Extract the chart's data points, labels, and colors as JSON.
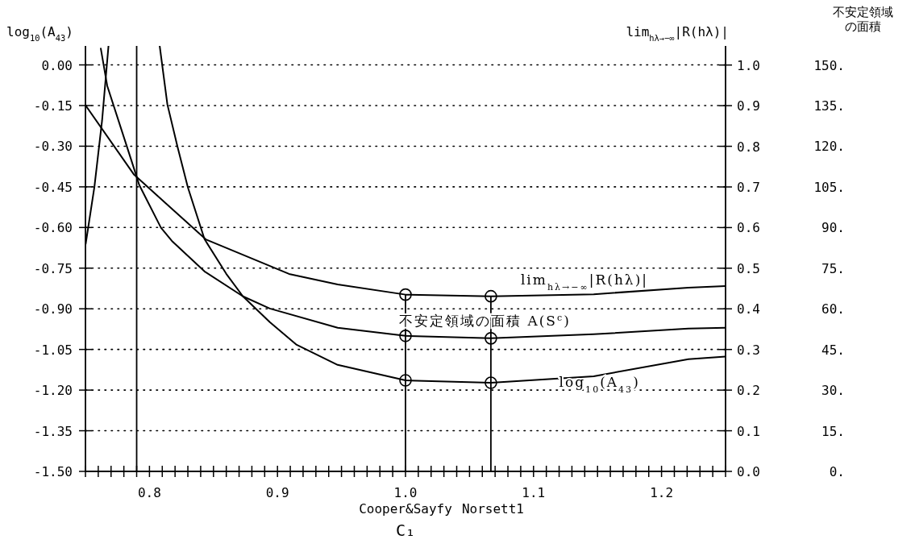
{
  "chart_data": {
    "type": "line",
    "xlabel": "C₁",
    "ylabel": "log$_{10}$(A$_{43}$)",
    "y2label": "lim$_{hλ→−∞}$|R(hλ)|",
    "y3label": "不安定領域の面積",
    "grid": "y",
    "legend": false,
    "xlim": [
      0.75,
      1.25
    ],
    "xticks": [
      {
        "value": 0.75,
        "label": null
      },
      {
        "value": 0.76,
        "label": null
      },
      {
        "value": 0.77,
        "label": null
      },
      {
        "value": 0.78,
        "label": null
      },
      {
        "value": 0.79,
        "label": null
      },
      {
        "value": 0.8,
        "label": "0.8"
      },
      {
        "value": 0.81,
        "label": null
      },
      {
        "value": 0.82,
        "label": null
      },
      {
        "value": 0.83,
        "label": null
      },
      {
        "value": 0.84,
        "label": null
      },
      {
        "value": 0.85,
        "label": null
      },
      {
        "value": 0.86,
        "label": null
      },
      {
        "value": 0.87,
        "label": null
      },
      {
        "value": 0.88,
        "label": null
      },
      {
        "value": 0.89,
        "label": null
      },
      {
        "value": 0.9,
        "label": "0.9"
      },
      {
        "value": 0.91,
        "label": null
      },
      {
        "value": 0.92,
        "label": null
      },
      {
        "value": 0.93,
        "label": null
      },
      {
        "value": 0.94,
        "label": null
      },
      {
        "value": 0.95,
        "label": null
      },
      {
        "value": 0.96,
        "label": null
      },
      {
        "value": 0.97,
        "label": null
      },
      {
        "value": 0.98,
        "label": null
      },
      {
        "value": 0.99,
        "label": null
      },
      {
        "value": 1.0,
        "label": "1.0"
      },
      {
        "value": 1.01,
        "label": null
      },
      {
        "value": 1.02,
        "label": null
      },
      {
        "value": 1.03,
        "label": null
      },
      {
        "value": 1.04,
        "label": null
      },
      {
        "value": 1.05,
        "label": null
      },
      {
        "value": 1.06,
        "label": null
      },
      {
        "value": 1.07,
        "label": null
      },
      {
        "value": 1.08,
        "label": null
      },
      {
        "value": 1.09,
        "label": null
      },
      {
        "value": 1.1,
        "label": "1.1"
      },
      {
        "value": 1.11,
        "label": null
      },
      {
        "value": 1.12,
        "label": null
      },
      {
        "value": 1.13,
        "label": null
      },
      {
        "value": 1.14,
        "label": null
      },
      {
        "value": 1.15,
        "label": null
      },
      {
        "value": 1.16,
        "label": null
      },
      {
        "value": 1.17,
        "label": null
      },
      {
        "value": 1.18,
        "label": null
      },
      {
        "value": 1.19,
        "label": null
      },
      {
        "value": 1.2,
        "label": "1.2"
      },
      {
        "value": 1.21,
        "label": null
      },
      {
        "value": 1.22,
        "label": null
      },
      {
        "value": 1.23,
        "label": null
      },
      {
        "value": 1.24,
        "label": null
      },
      {
        "value": 1.25,
        "label": null
      }
    ],
    "ylim": [
      -1.5,
      0.07
    ],
    "yticks": [
      {
        "value": 0.0,
        "label": "0.00"
      },
      {
        "value": -0.15,
        "label": "-0.15"
      },
      {
        "value": -0.3,
        "label": "-0.30"
      },
      {
        "value": -0.45,
        "label": "-0.45"
      },
      {
        "value": -0.6,
        "label": "-0.60"
      },
      {
        "value": -0.75,
        "label": "-0.75"
      },
      {
        "value": -0.9,
        "label": "-0.90"
      },
      {
        "value": -1.05,
        "label": "-1.05"
      },
      {
        "value": -1.2,
        "label": "-1.20"
      },
      {
        "value": -1.35,
        "label": "-1.35"
      },
      {
        "value": -1.5,
        "label": "-1.50"
      }
    ],
    "y2lim": [
      0,
      1.047
    ],
    "y2ticks": [
      {
        "value": 1.0,
        "label": "1.0"
      },
      {
        "value": 0.9,
        "label": "0.9"
      },
      {
        "value": 0.8,
        "label": "0.8"
      },
      {
        "value": 0.7,
        "label": "0.7"
      },
      {
        "value": 0.6,
        "label": "0.6"
      },
      {
        "value": 0.5,
        "label": "0.5"
      },
      {
        "value": 0.4,
        "label": "0.4"
      },
      {
        "value": 0.3,
        "label": "0.3"
      },
      {
        "value": 0.2,
        "label": "0.2"
      },
      {
        "value": 0.1,
        "label": "0.1"
      },
      {
        "value": 0.0,
        "label": "0.0"
      }
    ],
    "y3lim": [
      0,
      157
    ],
    "y3ticks": [
      {
        "value": 150,
        "label": "150."
      },
      {
        "value": 135,
        "label": "135."
      },
      {
        "value": 120,
        "label": "120."
      },
      {
        "value": 105,
        "label": "105."
      },
      {
        "value": 90,
        "label": "90."
      },
      {
        "value": 75,
        "label": "75."
      },
      {
        "value": 60,
        "label": "60."
      },
      {
        "value": 45,
        "label": "45."
      },
      {
        "value": 30,
        "label": "30."
      },
      {
        "value": 15,
        "label": "15."
      },
      {
        "value": 0,
        "label": "0."
      }
    ],
    "ref_lines": [
      {
        "axis": "x",
        "value": 0.79,
        "label": null
      },
      {
        "axis": "x",
        "value": 1.0,
        "label": "Cooper&Sayfy"
      },
      {
        "axis": "x",
        "value": 1.0667,
        "label": "Norsett1"
      }
    ],
    "series": [
      {
        "name": "lim$_{hλ→−∞}$|R(hλ)|",
        "axis": "y2",
        "color": "#000000",
        "x": [
          0.75,
          0.788,
          0.844,
          0.909,
          0.947,
          1.0,
          1.0667,
          1.147,
          1.221,
          1.25
        ],
        "values": [
          0.901,
          0.73,
          0.571,
          0.486,
          0.46,
          0.435,
          0.431,
          0.436,
          0.452,
          0.456
        ]
      },
      {
        "name": "不安定領域の面積 A(S$^{c}$)",
        "axis": "y3",
        "color": "#000000",
        "x": [
          0.762,
          0.767,
          0.786,
          0.792,
          0.809,
          0.818,
          0.843,
          0.873,
          0.894,
          0.947,
          1.0,
          1.0667,
          1.147,
          1.221,
          1.25
        ],
        "values": [
          156,
          142.3,
          114.6,
          105.7,
          89.9,
          84.8,
          73.8,
          64.6,
          60.1,
          53.0,
          50.0,
          49.1,
          50.6,
          52.7,
          53.0
        ]
      },
      {
        "name": "log$_{10}$(A$_{43}$)",
        "axis": "y",
        "color": "#000000",
        "x": [
          0.808,
          0.814,
          0.822,
          0.83,
          0.843,
          0.86,
          0.873,
          0.894,
          0.915,
          0.947,
          1.0,
          1.0667,
          1.147,
          1.221,
          1.25
        ],
        "values": [
          0.07,
          -0.146,
          -0.304,
          -0.452,
          -0.643,
          -0.771,
          -0.854,
          -0.949,
          -1.033,
          -1.107,
          -1.164,
          -1.173,
          -1.149,
          -1.086,
          -1.076
        ]
      },
      {
        "axis": "y",
        "color": "#000000",
        "x": [
          0.7502,
          0.757,
          0.763,
          0.768
        ],
        "values": [
          -0.66,
          -0.45,
          -0.205,
          0.07
        ]
      },
      {
        "type": "scatter",
        "axis": "y2",
        "marker": "circle",
        "color": "#000000",
        "x": [
          1.0,
          1.0667
        ],
        "values": [
          0.435,
          0.431
        ]
      },
      {
        "type": "scatter",
        "axis": "y3",
        "marker": "circle",
        "color": "#000000",
        "x": [
          1.0,
          1.0667
        ],
        "values": [
          50.0,
          49.1
        ]
      },
      {
        "type": "scatter",
        "axis": "y",
        "marker": "circle",
        "color": "#000000",
        "x": [
          1.0,
          1.0667
        ],
        "values": [
          -1.164,
          -1.173
        ]
      }
    ]
  }
}
